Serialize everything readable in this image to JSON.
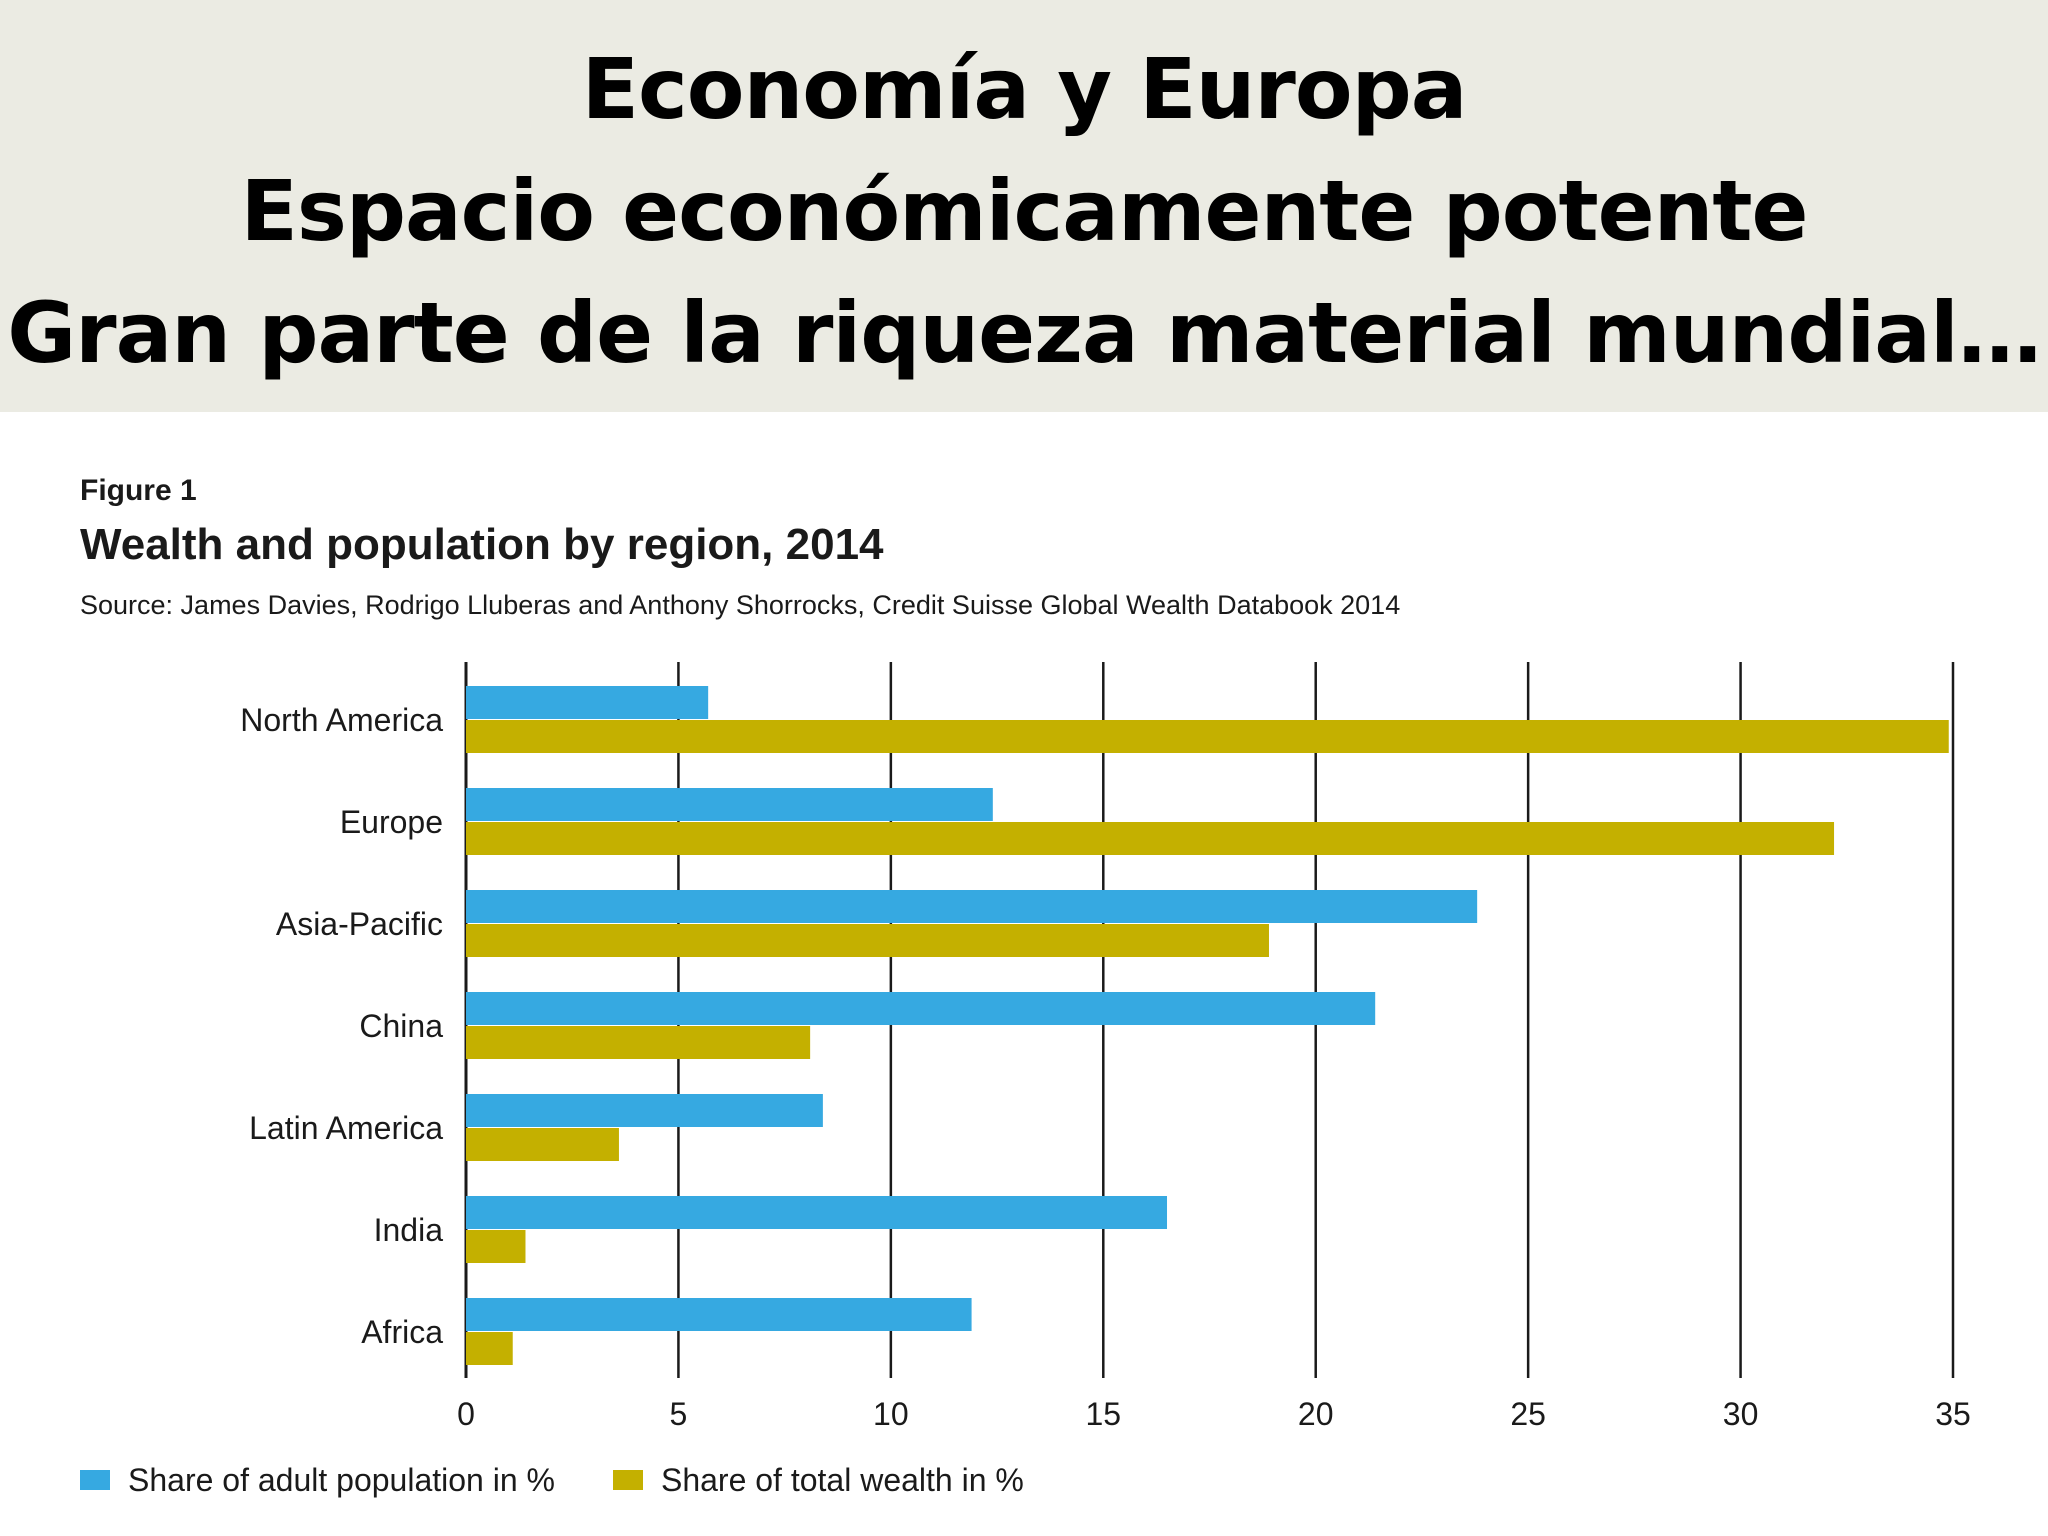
{
  "slide": {
    "title_lines": [
      "Economía y Europa",
      "Espacio económicamente potente",
      "Gran parte de la riqueza material mundial…"
    ]
  },
  "figure": {
    "label": "Figure 1",
    "title": "Wealth and population by region, 2014",
    "source": "Source: James Davies, Rodrigo Lluberas and Anthony Shorrocks, Credit Suisse Global Wealth Databook 2014"
  },
  "colors": {
    "population": "#36a9e1",
    "wealth": "#c4b000",
    "gridline": "#1a1a1a"
  },
  "chart_data": {
    "type": "bar",
    "orientation": "horizontal",
    "title": "Wealth and population by region, 2014",
    "categories": [
      "North America",
      "Europe",
      "Asia-Pacific",
      "China",
      "Latin America",
      "India",
      "Africa"
    ],
    "series": [
      {
        "name": "Share of adult population in %",
        "values": [
          5.7,
          12.4,
          23.8,
          21.4,
          8.4,
          16.5,
          11.9
        ]
      },
      {
        "name": "Share of total wealth in %",
        "values": [
          34.9,
          32.2,
          18.9,
          8.1,
          3.6,
          1.4,
          1.1
        ]
      }
    ],
    "x_ticks": [
      0,
      5,
      10,
      15,
      20,
      25,
      30,
      35
    ],
    "xlim": [
      0,
      35
    ],
    "grid": true,
    "legend_position": "bottom-left"
  }
}
